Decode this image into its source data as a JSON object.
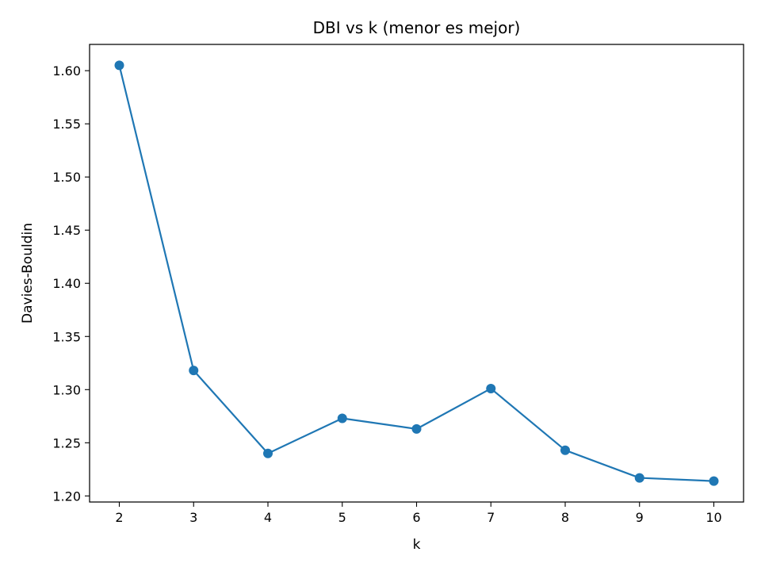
{
  "chart_data": {
    "type": "line",
    "title": "DBI vs k (menor es mejor)",
    "xlabel": "k",
    "ylabel": "Davies-Bouldin",
    "x": [
      2,
      3,
      4,
      5,
      6,
      7,
      8,
      9,
      10
    ],
    "series": [
      {
        "values": [
          1.605,
          1.318,
          1.24,
          1.273,
          1.263,
          1.301,
          1.243,
          1.217,
          1.214
        ],
        "color": "#1f77b4",
        "marker": "circle"
      }
    ],
    "xticks": [
      "2",
      "3",
      "4",
      "5",
      "6",
      "7",
      "8",
      "9",
      "10"
    ],
    "yticks": [
      "1.20",
      "1.25",
      "1.30",
      "1.35",
      "1.40",
      "1.45",
      "1.50",
      "1.55",
      "1.60"
    ],
    "xlim": [
      1.6,
      10.4
    ],
    "ylim": [
      1.1943,
      1.6247
    ],
    "grid": false,
    "legend": "none"
  }
}
